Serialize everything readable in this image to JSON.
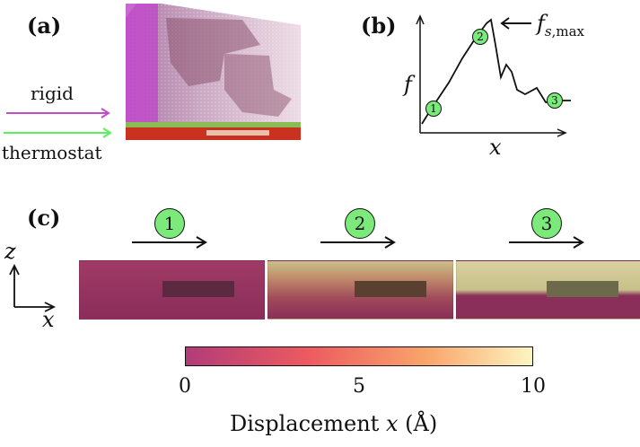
{
  "panels": {
    "a": {
      "label": "(a)",
      "rigid_label": "rigid",
      "thermostat_label": "thermostat",
      "colors": {
        "rigid": "#c04ec8",
        "thermostat": "#66ee66",
        "slab": "#8b2a55",
        "bottom": "#d12a1c"
      }
    },
    "b": {
      "label": "(b)",
      "y_label": "f",
      "x_label": "x",
      "annotation_main": "f",
      "annotation_sub": "s,max",
      "markers": [
        "1",
        "2",
        "3"
      ]
    },
    "c": {
      "label": "(c)",
      "z_axis": "z",
      "x_axis": "x",
      "snapshots": [
        {
          "marker": "1"
        },
        {
          "marker": "2"
        },
        {
          "marker": "3"
        }
      ]
    }
  },
  "colorbar": {
    "ticks": [
      "0",
      "5",
      "10"
    ],
    "title_prefix": "Displacement",
    "title_var": "x",
    "title_unit": "(Å)",
    "colors": [
      "#b23c78",
      "#ec5a60",
      "#f9a66b",
      "#fdf5c2"
    ]
  }
}
